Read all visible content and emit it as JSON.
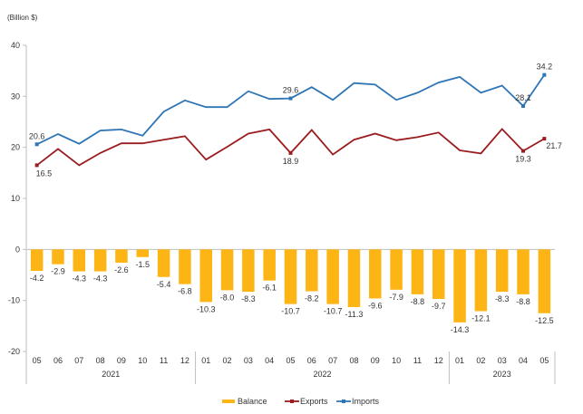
{
  "chart_data": {
    "type": "bar+line",
    "unit_label": "(Billion $)",
    "categories": [
      "05",
      "06",
      "07",
      "08",
      "09",
      "10",
      "11",
      "12",
      "01",
      "02",
      "03",
      "04",
      "05",
      "06",
      "07",
      "08",
      "09",
      "10",
      "11",
      "12",
      "01",
      "02",
      "03",
      "04",
      "05"
    ],
    "groups": [
      {
        "label": "2021",
        "count": 8
      },
      {
        "label": "2022",
        "count": 12
      },
      {
        "label": "2023",
        "count": 5
      }
    ],
    "ylim": [
      -20,
      40
    ],
    "yticks": [
      -20,
      -10,
      0,
      10,
      20,
      30,
      40
    ],
    "series": [
      {
        "name": "Balance",
        "type": "bar",
        "color": "#FDB515",
        "values": [
          -4.2,
          -2.9,
          -4.3,
          -4.3,
          -2.6,
          -1.5,
          -5.4,
          -6.8,
          -10.3,
          -8.0,
          -8.3,
          -6.1,
          -10.7,
          -8.2,
          -10.7,
          -11.3,
          -9.6,
          -7.9,
          -8.8,
          -9.7,
          -14.3,
          -12.1,
          -8.3,
          -8.8,
          -12.5
        ],
        "labels": [
          "-4.2",
          "-2.9",
          "-4.3",
          "-4.3",
          "-2.6",
          "-1.5",
          "-5.4",
          "-6.8",
          "-10.3",
          "-8.0",
          "-8.3",
          "-6.1",
          "-10.7",
          "-8.2",
          "-10.7",
          "-11.3",
          "-9.6",
          "-7.9",
          "-8.8",
          "-9.7",
          "-14.3",
          "-12.1",
          "-8.3",
          "-8.8",
          "-12.5"
        ]
      },
      {
        "name": "Exports",
        "type": "line",
        "color": "#9B1C1F",
        "values": [
          16.5,
          19.7,
          16.5,
          18.9,
          20.8,
          20.8,
          21.5,
          22.2,
          17.6,
          20.1,
          22.7,
          23.5,
          18.9,
          23.4,
          18.6,
          21.5,
          22.7,
          21.4,
          22.0,
          22.9,
          19.4,
          18.8,
          23.6,
          19.3,
          21.7
        ],
        "labeled_points": [
          {
            "index": 0,
            "label": "16.5"
          },
          {
            "index": 12,
            "label": "18.9"
          },
          {
            "index": 23,
            "label": "19.3"
          },
          {
            "index": 24,
            "label": "21.7"
          }
        ]
      },
      {
        "name": "Imports",
        "type": "line",
        "color": "#2E75B6",
        "values": [
          20.6,
          22.6,
          20.7,
          23.3,
          23.5,
          22.3,
          27.0,
          29.2,
          27.9,
          27.9,
          31.0,
          29.5,
          29.6,
          31.8,
          29.3,
          32.6,
          32.3,
          29.3,
          30.7,
          32.7,
          33.8,
          30.7,
          32.1,
          28.1,
          34.2
        ],
        "labeled_points": [
          {
            "index": 0,
            "label": "20.6"
          },
          {
            "index": 12,
            "label": "29.6"
          },
          {
            "index": 23,
            "label": "28.1"
          },
          {
            "index": 24,
            "label": "34.2"
          }
        ]
      }
    ],
    "legend": {
      "position": "bottom",
      "entries": [
        "Balance",
        "Exports",
        "Imports"
      ]
    },
    "grid": false
  }
}
